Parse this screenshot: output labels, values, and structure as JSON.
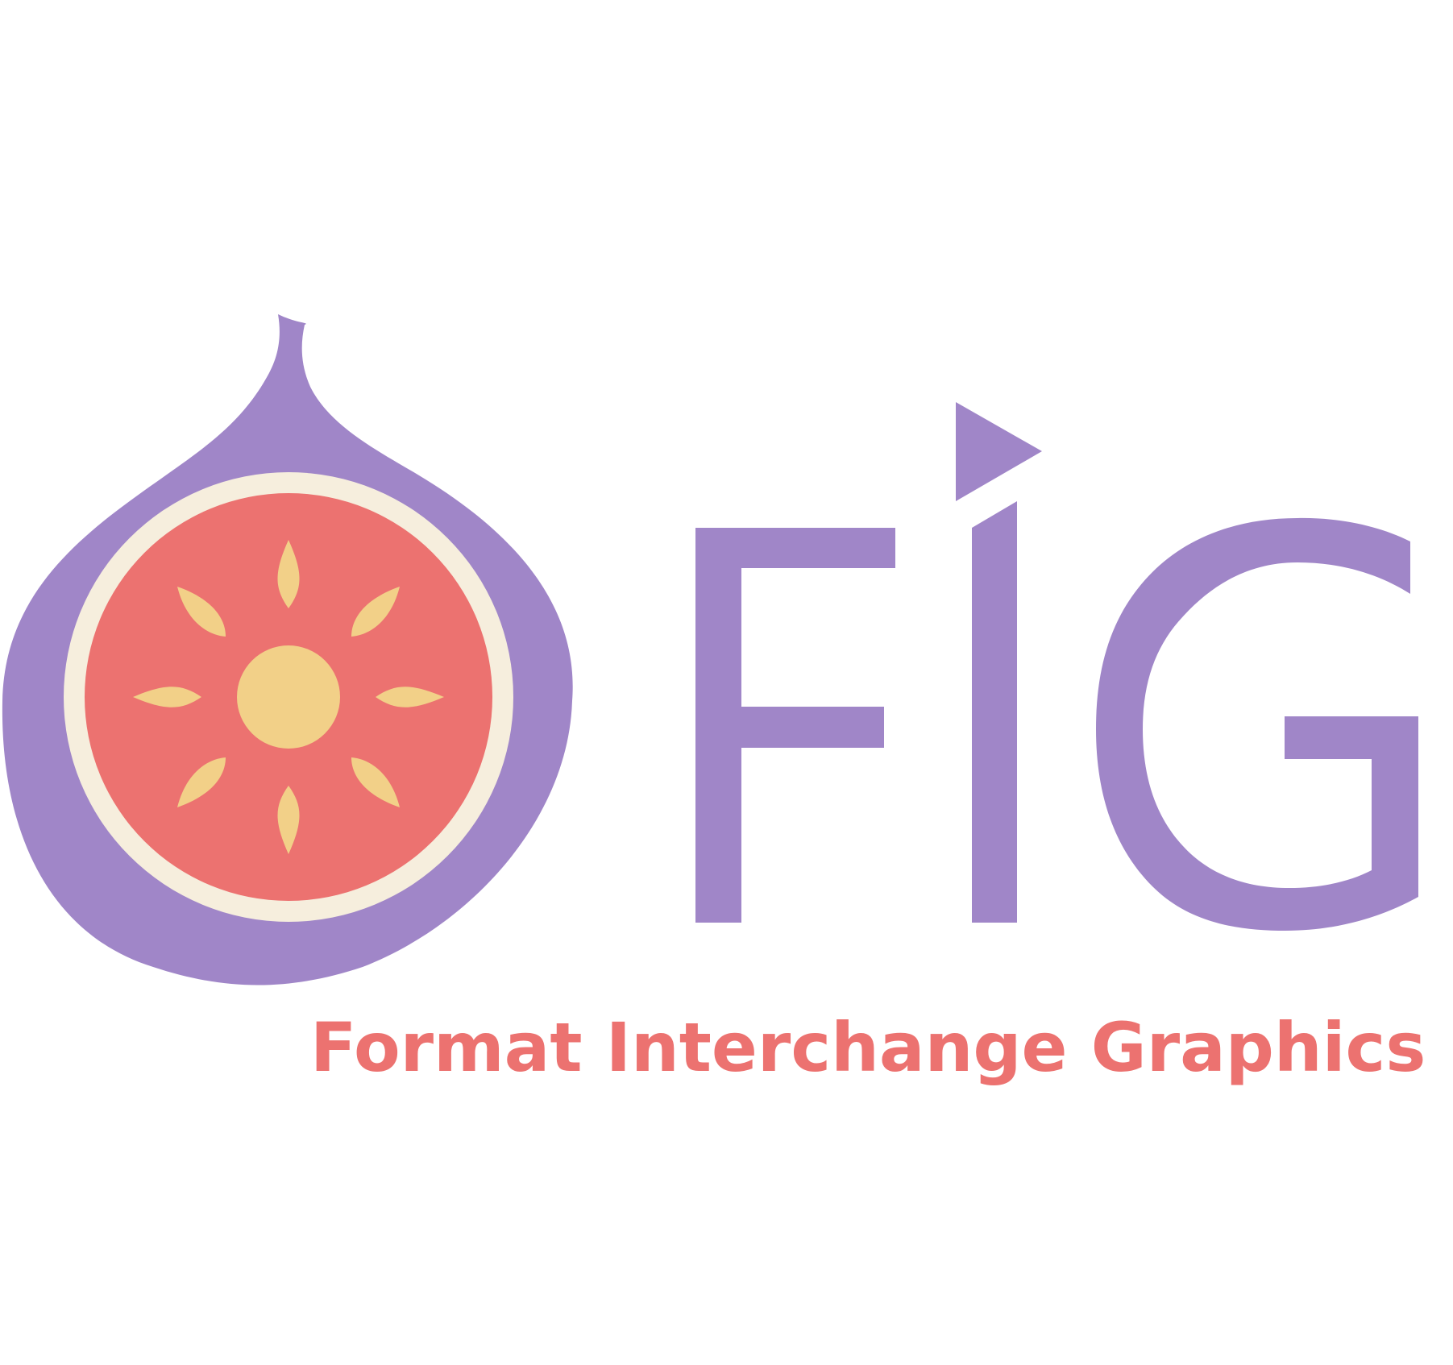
{
  "logo": {
    "wordmark": "FIG",
    "tagline": "Format Interchange Graphics",
    "colors": {
      "purple": "#A086C8",
      "rind": "#F6EEDD",
      "flesh": "#EC7270",
      "seed": "#F2D088",
      "tagline": "#EC7270",
      "background": "#FFFFFF"
    }
  }
}
